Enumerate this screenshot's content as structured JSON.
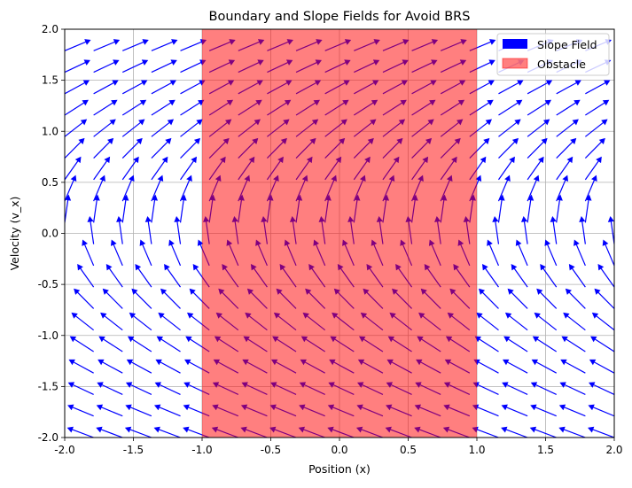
{
  "chart_data": {
    "type": "quiver",
    "title": "Boundary and Slope Fields for Avoid BRS",
    "xlabel": "Position (x)",
    "ylabel": "Velocity (v_x)",
    "xlim": [
      -2.0,
      2.0
    ],
    "ylim": [
      -2.0,
      2.0
    ],
    "xticks": [
      "-2.0",
      "-1.5",
      "-1.0",
      "-0.5",
      "0.0",
      "0.5",
      "1.0",
      "1.5",
      "2.0"
    ],
    "yticks": [
      "-2.0",
      "-1.5",
      "-1.0",
      "-0.5",
      "0.0",
      "0.5",
      "1.0",
      "1.5",
      "2.0"
    ],
    "grid": true,
    "legend_position": "top-right",
    "legend": [
      {
        "label": "Slope Field",
        "color": "#0000ff",
        "kind": "patch"
      },
      {
        "label": "Obstacle",
        "color": "#ff0000",
        "alpha": 0.5,
        "kind": "patch"
      }
    ],
    "obstacle": {
      "x_range": [
        -1.0,
        1.0
      ],
      "y_range": [
        -2.0,
        2.0
      ],
      "color": "#ff0000",
      "alpha": 0.5
    },
    "slope_field": {
      "color": "#0000ff",
      "x_range": [
        -2.0,
        2.0
      ],
      "y_range": [
        -2.0,
        2.0
      ],
      "grid_count": 20,
      "dx_formula": "v",
      "dv_formula": "1",
      "normalized": true
    }
  },
  "colors": {
    "arrow": "#0000ff",
    "obstacle": "#ff0000",
    "grid": "#b0b0b0",
    "axis": "#000000"
  }
}
